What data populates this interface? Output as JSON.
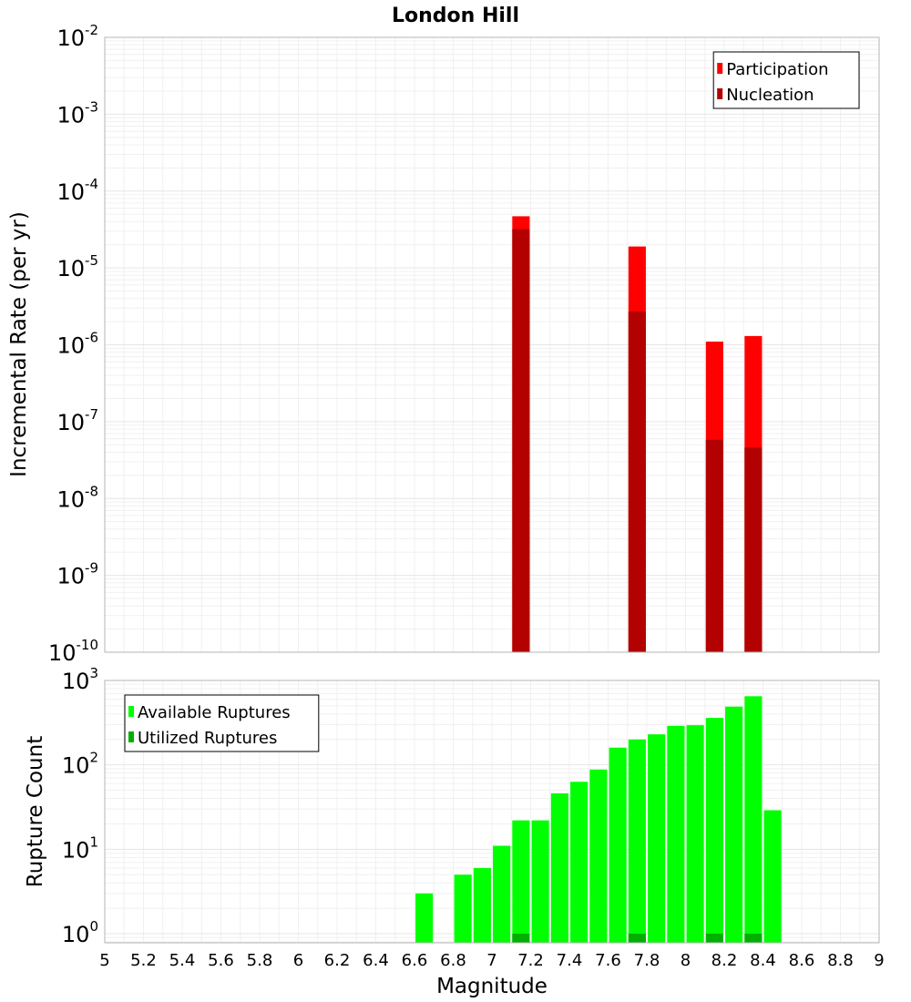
{
  "chart_data": [
    {
      "type": "bar",
      "title": "London Hill",
      "ylabel": "Incremental Rate (per yr)",
      "xlabel": "",
      "yscale": "log",
      "ylim": [
        1e-10,
        0.01
      ],
      "xlim": [
        5,
        9
      ],
      "ytick_labels": [
        {
          "base": "10",
          "exp": "-10",
          "value": 1e-10
        },
        {
          "base": "10",
          "exp": "-9",
          "value": 1e-09
        },
        {
          "base": "10",
          "exp": "-8",
          "value": 1e-08
        },
        {
          "base": "10",
          "exp": "-7",
          "value": 1e-07
        },
        {
          "base": "10",
          "exp": "-6",
          "value": 1e-06
        },
        {
          "base": "10",
          "exp": "-5",
          "value": 1e-05
        },
        {
          "base": "10",
          "exp": "-4",
          "value": 0.0001
        },
        {
          "base": "10",
          "exp": "-3",
          "value": 0.001
        },
        {
          "base": "10",
          "exp": "-2",
          "value": 0.01
        }
      ],
      "legend_position": "top-right",
      "grid": true,
      "series": [
        {
          "name": "Participation",
          "color": "#ff0000",
          "x": [
            7.15,
            7.75,
            8.15,
            8.35
          ],
          "values": [
            4.7e-05,
            1.9e-05,
            1.1e-06,
            1.3e-06
          ]
        },
        {
          "name": "Nucleation",
          "color": "#b30000",
          "x": [
            7.15,
            7.75,
            8.15,
            8.35
          ],
          "values": [
            3.2e-05,
            2.7e-06,
            5.8e-08,
            4.6e-08
          ]
        }
      ]
    },
    {
      "type": "bar",
      "title": "",
      "ylabel": "Rupture Count",
      "xlabel": "Magnitude",
      "yscale": "log",
      "ylim": [
        0.78,
        1000
      ],
      "xlim": [
        5,
        9
      ],
      "ytick_labels": [
        {
          "base": "10",
          "exp": "0",
          "value": 1
        },
        {
          "base": "10",
          "exp": "1",
          "value": 10
        },
        {
          "base": "10",
          "exp": "2",
          "value": 100
        },
        {
          "base": "10",
          "exp": "3",
          "value": 1000
        }
      ],
      "xtick_labels": [
        "5",
        "5.2",
        "5.4",
        "5.6",
        "5.8",
        "6",
        "6.2",
        "6.4",
        "6.6",
        "6.8",
        "7",
        "7.2",
        "7.4",
        "7.6",
        "7.8",
        "8",
        "8.2",
        "8.4",
        "8.6",
        "8.8",
        "9"
      ],
      "legend_position": "top-left",
      "grid": true,
      "series": [
        {
          "name": "Available Ruptures",
          "color": "#00ff00",
          "x": [
            6.65,
            6.85,
            6.95,
            7.05,
            7.15,
            7.25,
            7.35,
            7.45,
            7.55,
            7.65,
            7.75,
            7.85,
            7.95,
            8.05,
            8.15,
            8.25,
            8.35,
            8.45
          ],
          "values": [
            3,
            5,
            6,
            11,
            22,
            22,
            46,
            63,
            88,
            160,
            200,
            230,
            290,
            295,
            360,
            490,
            650,
            29
          ]
        },
        {
          "name": "Utilized Ruptures",
          "color": "#00b000",
          "x": [
            7.15,
            7.75,
            8.15,
            8.35
          ],
          "values": [
            1,
            1,
            1,
            1
          ]
        }
      ]
    }
  ]
}
